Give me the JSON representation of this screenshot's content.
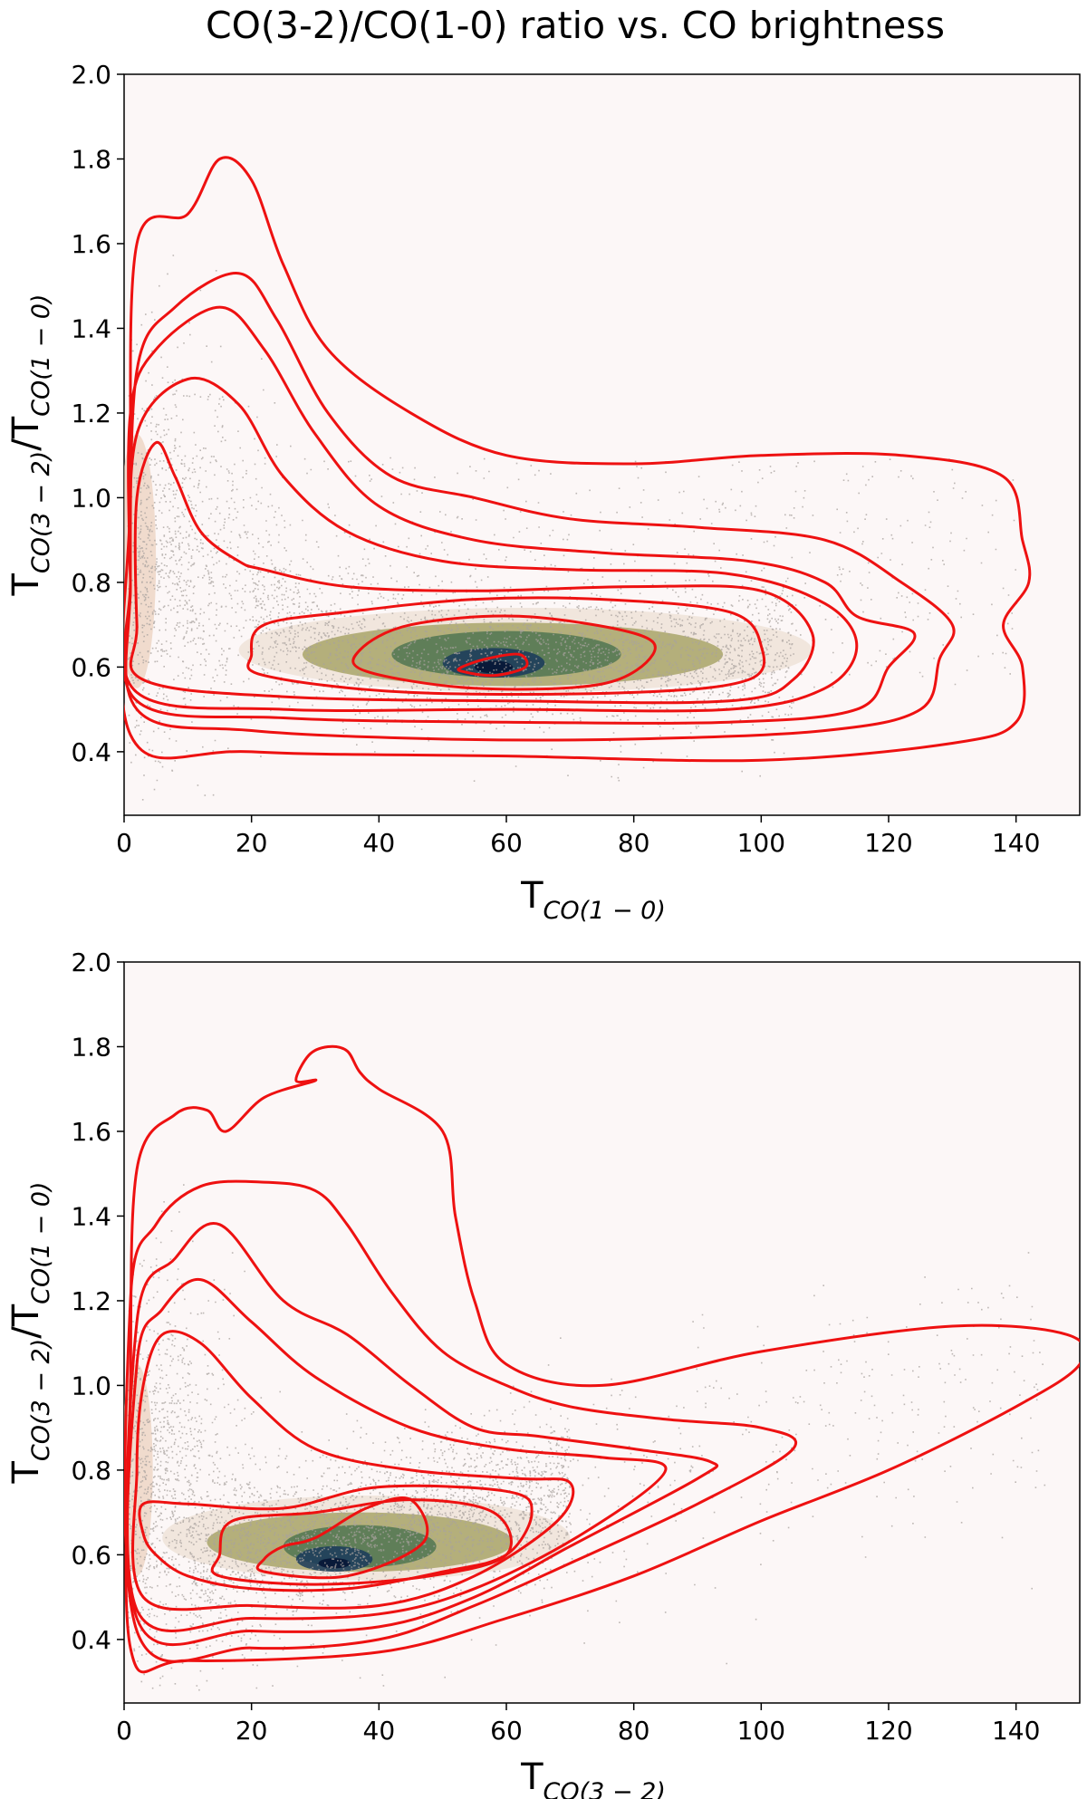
{
  "title": "CO(3-2)/CO(1-0) ratio vs. CO brightness",
  "colors": {
    "background": "#fcf7f7",
    "scatter": "#a8a29e",
    "contour": "#ee1111",
    "density_low": "#e8d8c8",
    "density_mid": "#8c8a3a",
    "density_high": "#1a3a5c",
    "density_peak": "#081838"
  },
  "chart_data": [
    {
      "type": "scatter",
      "xlabel_main": "T",
      "xlabel_sub": "CO(1 − 0)",
      "ylabel_main": "T",
      "ylabel_sub": "CO(3 − 2)",
      "ylabel_mid": "/T",
      "ylabel_sub2": "CO(1 − 0)",
      "xlim": [
        0,
        150
      ],
      "ylim": [
        0.25,
        2.0
      ],
      "xticks": [
        "0",
        "20",
        "40",
        "60",
        "80",
        "100",
        "120",
        "140"
      ],
      "yticks": [
        "0.4",
        "0.6",
        "0.8",
        "1.0",
        "1.2",
        "1.4",
        "1.6",
        "1.8",
        "2.0"
      ],
      "density_peak": {
        "x": 58,
        "y": 0.6
      },
      "contours": [
        [
          [
            1,
            0.44
          ],
          [
            20,
            0.4
          ],
          [
            60,
            0.39
          ],
          [
            100,
            0.38
          ],
          [
            130,
            0.42
          ],
          [
            140,
            0.47
          ],
          [
            141,
            0.6
          ],
          [
            138,
            0.7
          ],
          [
            142,
            0.8
          ],
          [
            141,
            0.9
          ],
          [
            138,
            1.05
          ],
          [
            122,
            1.1
          ],
          [
            100,
            1.1
          ],
          [
            80,
            1.08
          ],
          [
            60,
            1.1
          ],
          [
            45,
            1.2
          ],
          [
            32,
            1.35
          ],
          [
            25,
            1.55
          ],
          [
            20,
            1.75
          ],
          [
            15,
            1.8
          ],
          [
            10,
            1.67
          ],
          [
            2,
            1.6
          ],
          [
            1,
            1.0
          ]
        ],
        [
          [
            2,
            0.5
          ],
          [
            20,
            0.45
          ],
          [
            50,
            0.43
          ],
          [
            80,
            0.43
          ],
          [
            110,
            0.45
          ],
          [
            125,
            0.5
          ],
          [
            128,
            0.62
          ],
          [
            130,
            0.7
          ],
          [
            122,
            0.8
          ],
          [
            110,
            0.9
          ],
          [
            90,
            0.93
          ],
          [
            70,
            0.95
          ],
          [
            55,
            1.0
          ],
          [
            42,
            1.05
          ],
          [
            32,
            1.2
          ],
          [
            24,
            1.42
          ],
          [
            18,
            1.53
          ],
          [
            8,
            1.45
          ],
          [
            2,
            1.3
          ],
          [
            1,
            0.8
          ]
        ],
        [
          [
            2,
            0.52
          ],
          [
            25,
            0.48
          ],
          [
            60,
            0.47
          ],
          [
            95,
            0.47
          ],
          [
            115,
            0.5
          ],
          [
            120,
            0.6
          ],
          [
            124,
            0.68
          ],
          [
            115,
            0.72
          ],
          [
            110,
            0.8
          ],
          [
            98,
            0.85
          ],
          [
            75,
            0.87
          ],
          [
            55,
            0.9
          ],
          [
            40,
            0.98
          ],
          [
            30,
            1.15
          ],
          [
            22,
            1.35
          ],
          [
            15,
            1.45
          ],
          [
            5,
            1.35
          ],
          [
            1,
            1.2
          ],
          [
            1,
            0.8
          ]
        ],
        [
          [
            2,
            0.54
          ],
          [
            25,
            0.5
          ],
          [
            60,
            0.5
          ],
          [
            95,
            0.5
          ],
          [
            110,
            0.55
          ],
          [
            115,
            0.65
          ],
          [
            110,
            0.75
          ],
          [
            95,
            0.82
          ],
          [
            70,
            0.83
          ],
          [
            50,
            0.85
          ],
          [
            35,
            0.92
          ],
          [
            25,
            1.05
          ],
          [
            18,
            1.22
          ],
          [
            10,
            1.28
          ],
          [
            2,
            1.15
          ],
          [
            1,
            0.8
          ]
        ],
        [
          [
            3,
            0.57
          ],
          [
            25,
            0.53
          ],
          [
            60,
            0.52
          ],
          [
            95,
            0.52
          ],
          [
            105,
            0.57
          ],
          [
            108,
            0.68
          ],
          [
            100,
            0.78
          ],
          [
            80,
            0.79
          ],
          [
            55,
            0.78
          ],
          [
            35,
            0.79
          ],
          [
            22,
            0.83
          ],
          [
            18,
            0.85
          ],
          [
            12,
            0.92
          ],
          [
            8,
            1.05
          ],
          [
            5,
            1.13
          ],
          [
            2,
            1.0
          ],
          [
            2,
            0.7
          ]
        ],
        [
          [
            22,
            0.58
          ],
          [
            45,
            0.54
          ],
          [
            80,
            0.54
          ],
          [
            98,
            0.57
          ],
          [
            100,
            0.65
          ],
          [
            95,
            0.73
          ],
          [
            75,
            0.76
          ],
          [
            55,
            0.76
          ],
          [
            35,
            0.73
          ],
          [
            22,
            0.7
          ],
          [
            20,
            0.63
          ]
        ],
        [
          [
            38,
            0.59
          ],
          [
            55,
            0.55
          ],
          [
            75,
            0.56
          ],
          [
            83,
            0.63
          ],
          [
            80,
            0.68
          ],
          [
            62,
            0.72
          ],
          [
            45,
            0.7
          ],
          [
            37,
            0.64
          ]
        ],
        [
          [
            53,
            0.59
          ],
          [
            58,
            0.58
          ],
          [
            63,
            0.6
          ],
          [
            62,
            0.63
          ],
          [
            57,
            0.62
          ],
          [
            53,
            0.6
          ]
        ]
      ]
    },
    {
      "type": "scatter",
      "xlabel_main": "T",
      "xlabel_sub": "CO(3 − 2)",
      "ylabel_main": "T",
      "ylabel_sub": "CO(3 − 2)",
      "ylabel_mid": "/T",
      "ylabel_sub2": "CO(1 − 0)",
      "xlim": [
        0,
        150
      ],
      "ylim": [
        0.25,
        2.0
      ],
      "xticks": [
        "0",
        "20",
        "40",
        "60",
        "80",
        "100",
        "120",
        "140"
      ],
      "yticks": [
        "0.4",
        "0.6",
        "0.8",
        "1.0",
        "1.2",
        "1.4",
        "1.6",
        "1.8",
        "2.0"
      ],
      "density_peak": {
        "x": 33,
        "y": 0.58
      },
      "contours": [
        [
          [
            1,
            0.38
          ],
          [
            10,
            0.35
          ],
          [
            40,
            0.37
          ],
          [
            60,
            0.45
          ],
          [
            80,
            0.55
          ],
          [
            100,
            0.68
          ],
          [
            120,
            0.8
          ],
          [
            140,
            0.95
          ],
          [
            150,
            1.05
          ],
          [
            148,
            1.12
          ],
          [
            130,
            1.14
          ],
          [
            100,
            1.08
          ],
          [
            75,
            1.0
          ],
          [
            60,
            1.05
          ],
          [
            55,
            1.2
          ],
          [
            52,
            1.4
          ],
          [
            50,
            1.6
          ],
          [
            40,
            1.7
          ],
          [
            37,
            1.74
          ],
          [
            35,
            1.79
          ],
          [
            32,
            1.8
          ],
          [
            29,
            1.78
          ],
          [
            27,
            1.72
          ],
          [
            30,
            1.72
          ],
          [
            22,
            1.68
          ],
          [
            16,
            1.6
          ],
          [
            13,
            1.65
          ],
          [
            8,
            1.64
          ],
          [
            2,
            1.51
          ],
          [
            1,
            1.0
          ]
        ],
        [
          [
            2,
            0.42
          ],
          [
            20,
            0.38
          ],
          [
            40,
            0.4
          ],
          [
            55,
            0.48
          ],
          [
            70,
            0.58
          ],
          [
            90,
            0.72
          ],
          [
            105,
            0.85
          ],
          [
            100,
            0.9
          ],
          [
            85,
            0.92
          ],
          [
            70,
            0.95
          ],
          [
            60,
            1.0
          ],
          [
            50,
            1.08
          ],
          [
            42,
            1.22
          ],
          [
            35,
            1.38
          ],
          [
            30,
            1.46
          ],
          [
            22,
            1.48
          ],
          [
            12,
            1.47
          ],
          [
            5,
            1.38
          ],
          [
            1,
            1.2
          ]
        ],
        [
          [
            2,
            0.45
          ],
          [
            20,
            0.42
          ],
          [
            40,
            0.43
          ],
          [
            55,
            0.5
          ],
          [
            70,
            0.62
          ],
          [
            90,
            0.78
          ],
          [
            92,
            0.82
          ],
          [
            80,
            0.85
          ],
          [
            65,
            0.88
          ],
          [
            55,
            0.9
          ],
          [
            45,
            1.0
          ],
          [
            35,
            1.12
          ],
          [
            25,
            1.2
          ],
          [
            15,
            1.38
          ],
          [
            8,
            1.3
          ],
          [
            2,
            1.15
          ]
        ],
        [
          [
            2,
            0.47
          ],
          [
            20,
            0.45
          ],
          [
            40,
            0.46
          ],
          [
            55,
            0.52
          ],
          [
            72,
            0.65
          ],
          [
            85,
            0.8
          ],
          [
            75,
            0.83
          ],
          [
            60,
            0.85
          ],
          [
            45,
            0.9
          ],
          [
            30,
            1.02
          ],
          [
            20,
            1.15
          ],
          [
            12,
            1.25
          ],
          [
            6,
            1.18
          ],
          [
            2,
            1.05
          ]
        ],
        [
          [
            3,
            0.5
          ],
          [
            20,
            0.48
          ],
          [
            40,
            0.48
          ],
          [
            55,
            0.55
          ],
          [
            68,
            0.68
          ],
          [
            70,
            0.77
          ],
          [
            62,
            0.78
          ],
          [
            45,
            0.8
          ],
          [
            30,
            0.85
          ],
          [
            20,
            0.97
          ],
          [
            12,
            1.1
          ],
          [
            6,
            1.12
          ],
          [
            3,
            1.0
          ],
          [
            2,
            0.8
          ]
        ],
        [
          [
            3,
            0.72
          ],
          [
            10,
            0.72
          ],
          [
            25,
            0.71
          ],
          [
            40,
            0.76
          ],
          [
            60,
            0.75
          ],
          [
            64,
            0.7
          ],
          [
            60,
            0.6
          ],
          [
            50,
            0.56
          ],
          [
            35,
            0.52
          ],
          [
            20,
            0.52
          ],
          [
            10,
            0.55
          ],
          [
            5,
            0.6
          ],
          [
            3,
            0.65
          ]
        ],
        [
          [
            15,
            0.55
          ],
          [
            30,
            0.53
          ],
          [
            48,
            0.55
          ],
          [
            60,
            0.6
          ],
          [
            58,
            0.7
          ],
          [
            45,
            0.73
          ],
          [
            30,
            0.7
          ],
          [
            17,
            0.68
          ],
          [
            15,
            0.6
          ]
        ],
        [
          [
            22,
            0.56
          ],
          [
            35,
            0.55
          ],
          [
            47,
            0.63
          ],
          [
            45,
            0.73
          ],
          [
            38,
            0.71
          ],
          [
            30,
            0.64
          ],
          [
            25,
            0.62
          ],
          [
            22,
            0.59
          ]
        ]
      ]
    }
  ]
}
